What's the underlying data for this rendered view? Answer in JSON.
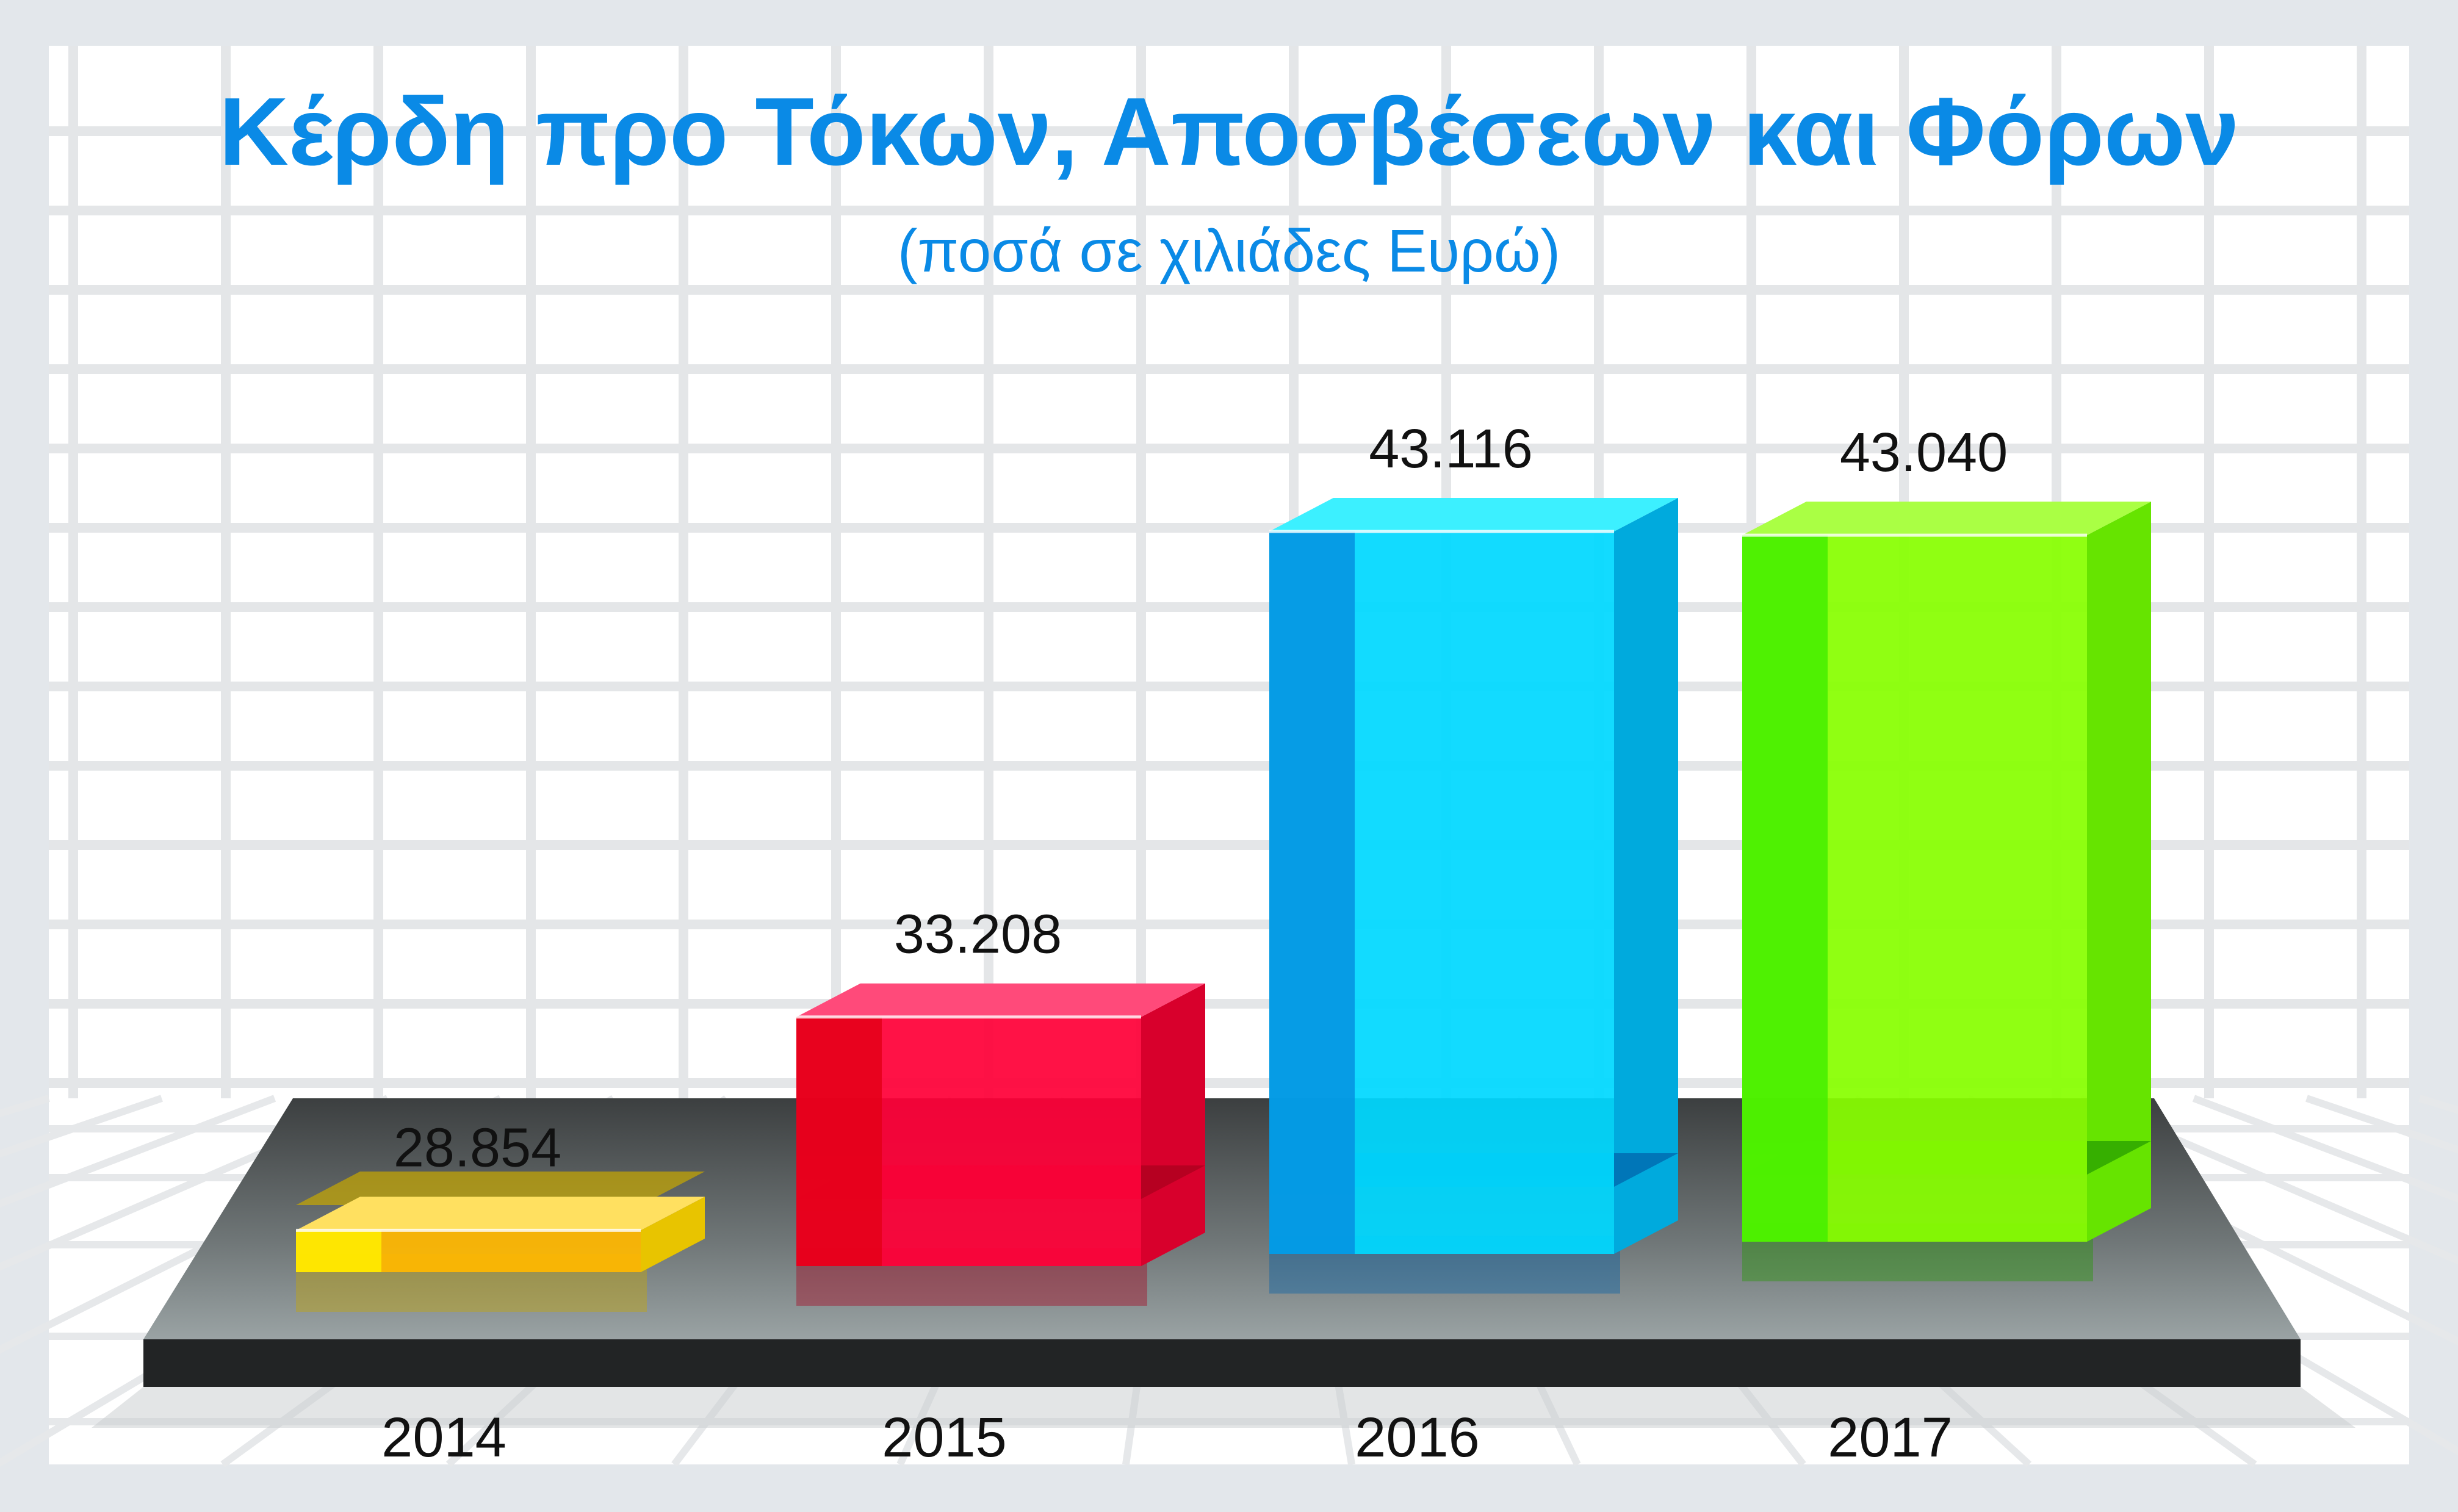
{
  "chart_data": {
    "type": "bar",
    "title": "Κέρδη προ Τόκων, Αποσβέσεων και Φόρων",
    "subtitle": "(ποσά σε χιλιάδες Ευρώ)",
    "categories": [
      "2014",
      "2015",
      "2016",
      "2017"
    ],
    "values": [
      28854,
      33208,
      43116,
      43040
    ],
    "value_labels": [
      "28.854",
      "33.208",
      "43.116",
      "43.040"
    ],
    "ylim": [
      28000,
      44000
    ],
    "grid": true,
    "bar_colors": [
      {
        "front": "#ffb800",
        "left": "#ffee00",
        "right": "#e8c400",
        "top": "#ffe060",
        "bottom": "#c8a800"
      },
      {
        "front": "#ff0038",
        "left": "#e40018",
        "right": "#d8002c",
        "top": "#ff4a7a",
        "bottom": "#a8001c"
      },
      {
        "front": "#00d8ff",
        "left": "#0590e0",
        "right": "#00aadd",
        "top": "#3cf0ff",
        "bottom": "#0060a8"
      },
      {
        "front": "#88ff00",
        "left": "#44ee00",
        "right": "#66e400",
        "top": "#aaff44",
        "bottom": "#229900"
      }
    ],
    "title_color": "#0a8ae6",
    "label_color": "#111111"
  }
}
